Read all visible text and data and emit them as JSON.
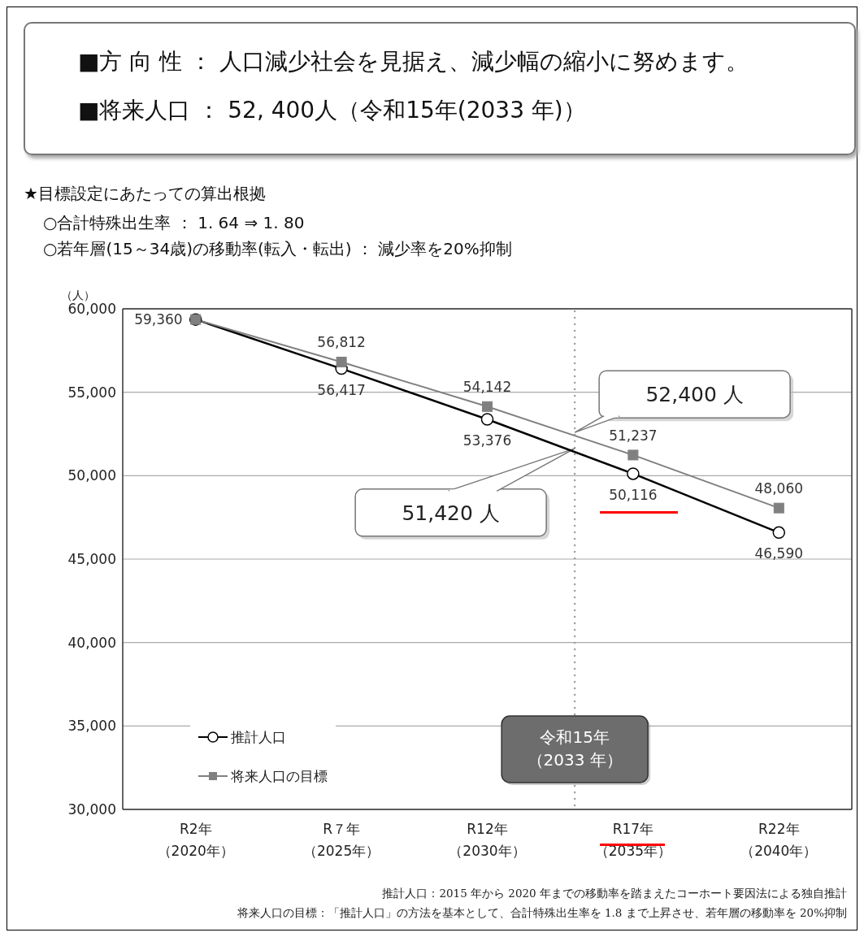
{
  "chart_data": {
    "type": "line",
    "title": "■方 向 性 ： 人口減少社会を見据え、減少幅の縮小に努めます。",
    "subtitle": "■将来人口 ： 52, 400人（令和15年(2033 年)）",
    "ylabel": "（人）",
    "categories": [
      "R2年（2020年）",
      "R７年（2025年）",
      "R12年（2030年）",
      "R17年（2035年）",
      "R22年（2040年）"
    ],
    "ylim": [
      30000,
      60000
    ],
    "yticks": [
      {
        "value": 30000,
        "label": "30,000"
      },
      {
        "value": 35000,
        "label": "35,000"
      },
      {
        "value": 40000,
        "label": "40,000"
      },
      {
        "value": 45000,
        "label": "45,000"
      },
      {
        "value": 50000,
        "label": "50,000"
      },
      {
        "value": 55000,
        "label": "55,000"
      },
      {
        "value": 60000,
        "label": "60,000"
      }
    ],
    "series": [
      {
        "name": "推計人口",
        "color": "#000000",
        "marker": "circle",
        "values": [
          59360,
          56417,
          53376,
          50116,
          46590
        ],
        "value_labels": [
          "59,360",
          "56,417",
          "53,376",
          "50,116",
          "46,590"
        ]
      },
      {
        "name": "将来人口の目標",
        "color": "#808080",
        "marker": "square",
        "values": [
          59360,
          56812,
          54142,
          51237,
          48060
        ],
        "value_labels": [
          null,
          "56,812",
          "54,142",
          "51,237",
          "48,060"
        ]
      }
    ],
    "annotations": [
      "52,400 人",
      "51,420 人",
      "令和15年（2033 年）",
      "★目標設定にあたっての算出根拠",
      "○合計特殊出生率 ： 1. 64 ⇒ 1. 80",
      "○若年層(15～34歳)の移動率(転入・転出) ： 減少率を20%抑制",
      "推計人口：2015 年から 2020 年までの移動率を踏まえたコーホート要因法による独自推計",
      "将来人口の目標：「推計人口」の方法を基本として、合計特殊出生率を 1.8 まで上昇させ、若年層の移動率を 20%抑制"
    ],
    "grid": "y",
    "legend": "bottom left"
  }
}
